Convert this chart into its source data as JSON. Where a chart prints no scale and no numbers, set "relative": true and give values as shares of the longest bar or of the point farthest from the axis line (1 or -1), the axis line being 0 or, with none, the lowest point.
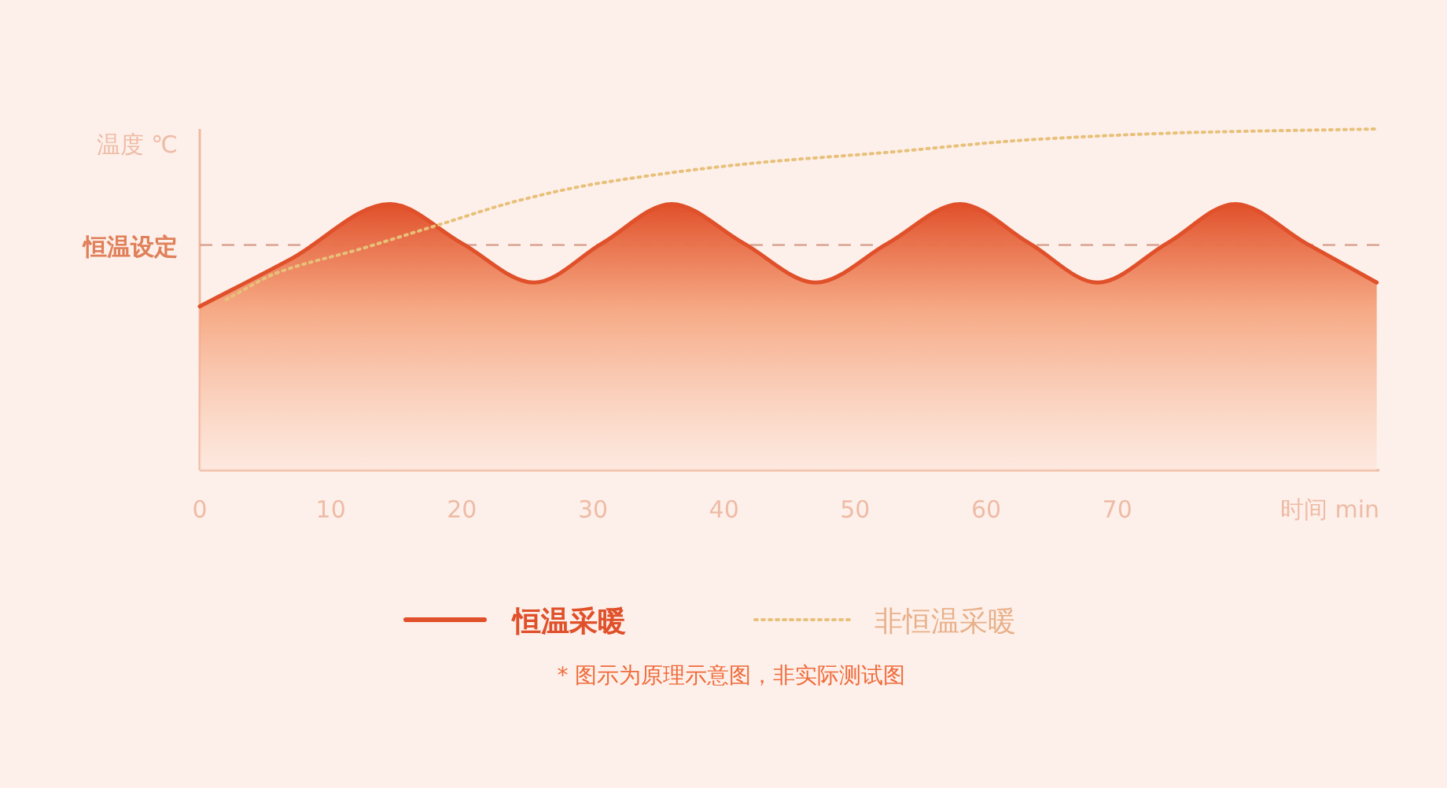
{
  "chart_data": {
    "type": "line",
    "relative": true,
    "xlabel": "时间 min",
    "ylabel": "温度 ℃",
    "xlim": [
      0,
      90
    ],
    "xticks": [
      0,
      10,
      20,
      30,
      40,
      50,
      60,
      70
    ],
    "legend": "bottom",
    "series": [
      {
        "name": "恒温采暖",
        "type": "area",
        "color": "#e0502a",
        "line_style": "solid",
        "x": [
          0,
          7,
          14.5,
          20,
          25.5,
          30.7,
          36,
          41.5,
          47,
          52.5,
          58,
          63.3,
          68.5,
          73.8,
          79,
          84.4,
          89.8
        ],
        "values": [
          0.48,
          0.62,
          0.78,
          0.665,
          0.55,
          0.665,
          0.78,
          0.665,
          0.55,
          0.665,
          0.78,
          0.665,
          0.55,
          0.665,
          0.78,
          0.665,
          0.55
        ]
      },
      {
        "name": "非恒温采暖",
        "type": "line",
        "color": "#e8c07a",
        "line_style": "dotted",
        "x": [
          2,
          6,
          12.4,
          18.3,
          24.3,
          30.3,
          42.3,
          52,
          64,
          76,
          89.8
        ],
        "values": [
          0.5,
          0.58,
          0.65,
          0.72,
          0.79,
          0.84,
          0.9,
          0.93,
          0.97,
          0.99,
          1.0
        ]
      }
    ],
    "ref_lines": [
      {
        "axis": "y",
        "value": 0.66,
        "label": "恒温设定",
        "color": "#d9a392",
        "line_style": "dashed"
      }
    ],
    "annotations": [
      "* 图示为原理示意图，非实际测试图"
    ]
  }
}
